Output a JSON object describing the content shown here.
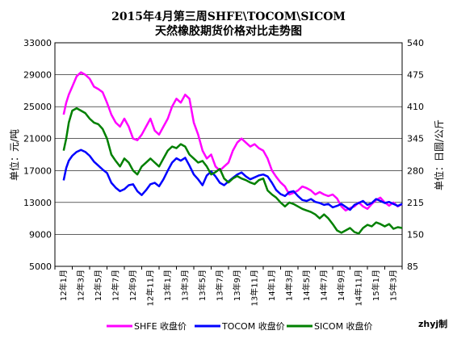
{
  "chart_data": {
    "type": "line",
    "title_line1": "2015年4月第三周SHFE\\TOCOM\\SICOM",
    "title_line2": "天然橡胶期货价格对比走势图",
    "ylabel_left": "单位：元/吨",
    "ylabel_right": "单位：日圆/公斤",
    "ylim_left": [
      5000,
      33000
    ],
    "yticks_left": [
      5000,
      9000,
      13000,
      17000,
      21000,
      25000,
      29000,
      33000
    ],
    "ylim_right": [
      85,
      540
    ],
    "yticks_right": [
      85,
      150,
      215,
      280,
      345,
      410,
      475,
      540
    ],
    "x_labels": [
      "12年1月",
      "12年3月",
      "12年5月",
      "12年7月",
      "12年9月",
      "12年11月",
      "13年1月",
      "13年3月",
      "13年5月",
      "13年7月",
      "13年9月",
      "13年11月",
      "14年1月",
      "14年3月",
      "14年5月",
      "14年7月",
      "14年9月",
      "14年11月",
      "15年1月",
      "15年3月"
    ],
    "grid": "horizontal",
    "legend_position": "bottom",
    "series": [
      {
        "name": "SHFE 收盘价",
        "axis": "left",
        "color": "#ff00ff",
        "x": [
          0,
          0.3,
          0.6,
          1.0,
          1.5,
          2.0,
          2.5,
          3.0,
          3.5,
          4.0,
          4.5,
          5.0,
          5.5,
          6.0,
          6.5,
          7.0,
          7.5,
          8.0,
          8.5,
          9.0,
          9.5,
          10.0,
          10.5,
          11.0,
          11.5,
          12.0,
          12.5,
          13.0,
          13.5,
          14.0,
          14.5,
          15.0,
          15.5,
          16.0,
          16.5,
          17.0,
          17.5,
          18.0,
          18.5,
          19.0,
          19.5,
          20.0,
          20.5,
          21.0,
          21.5,
          22.0,
          22.5,
          23.0,
          23.5,
          24.0,
          24.5,
          25.0,
          25.5,
          26.0,
          26.5,
          27.0,
          27.5,
          28.0,
          28.5,
          29.0,
          29.5,
          30.0,
          30.5,
          31.0,
          31.5,
          32.0,
          32.5,
          33.0,
          33.5,
          34.0,
          34.5,
          35.0,
          35.5,
          36.0,
          36.5,
          37.0,
          37.5,
          38.0,
          38.5,
          39.0
        ],
        "values": [
          24000,
          25500,
          26500,
          27500,
          28800,
          29300,
          29000,
          28500,
          27500,
          27200,
          26800,
          25500,
          24000,
          23000,
          22500,
          23500,
          22500,
          21000,
          20800,
          21500,
          22500,
          23500,
          22000,
          21500,
          22500,
          23500,
          25000,
          26000,
          25500,
          26500,
          26000,
          23000,
          21500,
          19500,
          18500,
          19000,
          17500,
          17000,
          17500,
          18000,
          19500,
          20500,
          21000,
          20500,
          20000,
          20300,
          19800,
          19500,
          18500,
          17000,
          16200,
          15500,
          15000,
          14000,
          14200,
          14500,
          15000,
          14800,
          14500,
          14000,
          14300,
          14000,
          13800,
          14000,
          13500,
          12500,
          12000,
          12300,
          12500,
          13000,
          12500,
          12200,
          12800,
          13300,
          13600,
          13000,
          12600,
          13000,
          12500,
          12800
        ]
      },
      {
        "name": "TOCOM 收盘价",
        "axis": "right",
        "color": "#0000ff",
        "x": [
          0,
          0.3,
          0.6,
          1.0,
          1.5,
          2.0,
          2.5,
          3.0,
          3.5,
          4.0,
          4.5,
          5.0,
          5.5,
          6.0,
          6.5,
          7.0,
          7.5,
          8.0,
          8.5,
          9.0,
          9.5,
          10.0,
          10.5,
          11.0,
          11.5,
          12.0,
          12.5,
          13.0,
          13.5,
          14.0,
          14.5,
          15.0,
          15.5,
          16.0,
          16.5,
          17.0,
          17.5,
          18.0,
          18.5,
          19.0,
          19.5,
          20.0,
          20.5,
          21.0,
          21.5,
          22.0,
          22.5,
          23.0,
          23.5,
          24.0,
          24.5,
          25.0,
          25.5,
          26.0,
          26.5,
          27.0,
          27.5,
          28.0,
          28.5,
          29.0,
          29.5,
          30.0,
          30.5,
          31.0,
          31.5,
          32.0,
          32.5,
          33.0,
          33.5,
          34.0,
          34.5,
          35.0,
          35.5,
          36.0,
          36.5,
          37.0,
          37.5,
          38.0,
          38.5,
          39.0
        ],
        "values": [
          260,
          285,
          300,
          310,
          318,
          322,
          318,
          310,
          298,
          290,
          282,
          275,
          255,
          245,
          238,
          242,
          250,
          252,
          238,
          230,
          240,
          252,
          255,
          248,
          262,
          280,
          296,
          305,
          300,
          306,
          290,
          272,
          262,
          250,
          270,
          278,
          268,
          255,
          250,
          258,
          265,
          272,
          276,
          268,
          262,
          266,
          270,
          272,
          268,
          255,
          240,
          232,
          228,
          236,
          238,
          228,
          220,
          218,
          222,
          216,
          214,
          210,
          212,
          205,
          208,
          212,
          206,
          200,
          210,
          214,
          218,
          210,
          214,
          222,
          218,
          214,
          216,
          212,
          208,
          212
        ]
      },
      {
        "name": "SICOM 收盘价",
        "axis": "left",
        "color": "#008000",
        "x": [
          0,
          0.3,
          0.6,
          1.0,
          1.5,
          2.0,
          2.5,
          3.0,
          3.5,
          4.0,
          4.5,
          5.0,
          5.5,
          6.0,
          6.5,
          7.0,
          7.5,
          8.0,
          8.5,
          9.0,
          9.5,
          10.0,
          10.5,
          11.0,
          11.5,
          12.0,
          12.5,
          13.0,
          13.5,
          14.0,
          14.5,
          15.0,
          15.5,
          16.0,
          16.5,
          17.0,
          17.5,
          18.0,
          18.5,
          19.0,
          19.5,
          20.0,
          20.5,
          21.0,
          21.5,
          22.0,
          22.5,
          23.0,
          23.5,
          24.0,
          24.5,
          25.0,
          25.5,
          26.0,
          26.5,
          27.0,
          27.5,
          28.0,
          28.5,
          29.0,
          29.5,
          30.0,
          30.5,
          31.0,
          31.5,
          32.0,
          32.5,
          33.0,
          33.5,
          34.0,
          34.5,
          35.0,
          35.5,
          36.0,
          36.5,
          37.0,
          37.5,
          38.0,
          38.5,
          39.0
        ],
        "values": [
          19500,
          21000,
          23000,
          24500,
          24800,
          24500,
          24200,
          23500,
          23000,
          22800,
          22200,
          21000,
          19000,
          18200,
          17500,
          18500,
          18000,
          17000,
          16500,
          17500,
          18000,
          18500,
          18000,
          17500,
          18500,
          19500,
          20000,
          19800,
          20300,
          20000,
          19000,
          18500,
          18000,
          18200,
          17500,
          16500,
          16800,
          17200,
          16000,
          15500,
          16000,
          16300,
          16000,
          15800,
          15500,
          15300,
          15800,
          16000,
          14500,
          14000,
          13600,
          13000,
          12500,
          13000,
          12800,
          12500,
          12200,
          12000,
          11800,
          11500,
          11000,
          11500,
          11000,
          10300,
          9500,
          9200,
          9500,
          9800,
          9300,
          9100,
          9800,
          10200,
          10000,
          10500,
          10300,
          10000,
          10300,
          9700,
          9900,
          9800
        ]
      }
    ]
  },
  "credit": "zhyj制"
}
